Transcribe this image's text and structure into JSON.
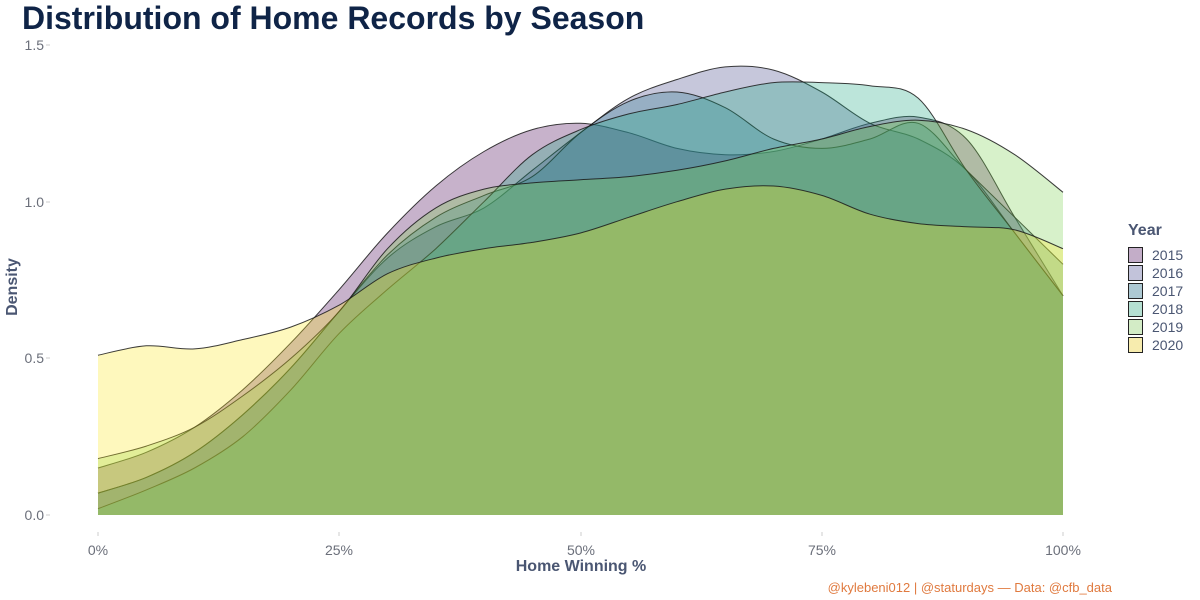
{
  "title": "Distribution of Home Records by Season",
  "caption": "@kylebeni012 | @staturdays — Data: @cfb_data",
  "chart_data": {
    "type": "area",
    "subtype": "density",
    "title": "Distribution of Home Records by Season",
    "xlabel": "Home Winning %",
    "ylabel": "Density",
    "xlim": [
      0,
      100
    ],
    "ylim": [
      0,
      1.5
    ],
    "x_ticks": [
      "0%",
      "25%",
      "50%",
      "75%",
      "100%"
    ],
    "y_ticks": [
      "0.0",
      "0.5",
      "1.0",
      "1.5"
    ],
    "grid": false,
    "legend_title": "Year",
    "legend_position": "right",
    "x": [
      0,
      5,
      10,
      15,
      20,
      25,
      30,
      35,
      40,
      45,
      50,
      55,
      60,
      65,
      70,
      75,
      80,
      85,
      90,
      95,
      100
    ],
    "series": [
      {
        "name": "2015",
        "color": "#440154",
        "fill": "#c3adc8",
        "values": [
          0.15,
          0.2,
          0.28,
          0.4,
          0.55,
          0.72,
          0.9,
          1.05,
          1.16,
          1.23,
          1.25,
          1.22,
          1.17,
          1.15,
          1.16,
          1.2,
          1.25,
          1.27,
          1.2,
          0.95,
          0.7
        ]
      },
      {
        "name": "2016",
        "color": "#414487",
        "fill": "#c2c3da",
        "values": [
          0.07,
          0.12,
          0.2,
          0.32,
          0.47,
          0.65,
          0.82,
          0.92,
          0.98,
          1.1,
          1.22,
          1.33,
          1.39,
          1.43,
          1.42,
          1.35,
          1.25,
          1.2,
          1.1,
          0.9,
          0.7
        ]
      },
      {
        "name": "2017",
        "color": "#2a788e",
        "fill": "#abc9d2",
        "values": [
          0.07,
          0.12,
          0.2,
          0.32,
          0.47,
          0.65,
          0.83,
          0.95,
          1.02,
          1.08,
          1.22,
          1.32,
          1.35,
          1.3,
          1.2,
          1.17,
          1.2,
          1.25,
          1.1,
          0.95,
          0.8
        ]
      },
      {
        "name": "2018",
        "color": "#22a884",
        "fill": "#b6e2d3",
        "values": [
          0.02,
          0.08,
          0.15,
          0.25,
          0.4,
          0.58,
          0.72,
          0.85,
          1.0,
          1.15,
          1.23,
          1.28,
          1.31,
          1.35,
          1.38,
          1.38,
          1.37,
          1.33,
          1.1,
          0.9,
          0.7
        ]
      },
      {
        "name": "2019",
        "color": "#7ad151",
        "fill": "#d5efcb",
        "values": [
          0.18,
          0.22,
          0.28,
          0.38,
          0.5,
          0.65,
          0.85,
          0.98,
          1.04,
          1.06,
          1.07,
          1.08,
          1.1,
          1.13,
          1.17,
          1.2,
          1.24,
          1.26,
          1.23,
          1.15,
          1.03
        ]
      },
      {
        "name": "2020",
        "color": "#fde725",
        "fill": "#fdf5bd",
        "values": [
          0.51,
          0.54,
          0.53,
          0.56,
          0.6,
          0.67,
          0.77,
          0.82,
          0.85,
          0.87,
          0.9,
          0.95,
          1.0,
          1.04,
          1.05,
          1.02,
          0.96,
          0.93,
          0.92,
          0.91,
          0.85
        ]
      }
    ]
  },
  "legend": {
    "title": "Year",
    "items": [
      {
        "label": "2015",
        "color": "#c3adc8"
      },
      {
        "label": "2016",
        "color": "#c2c3da"
      },
      {
        "label": "2017",
        "color": "#adc9d3"
      },
      {
        "label": "2018",
        "color": "#b5e0d2"
      },
      {
        "label": "2019",
        "color": "#d3ecc6"
      },
      {
        "label": "2020",
        "color": "#f7ecae"
      }
    ]
  }
}
